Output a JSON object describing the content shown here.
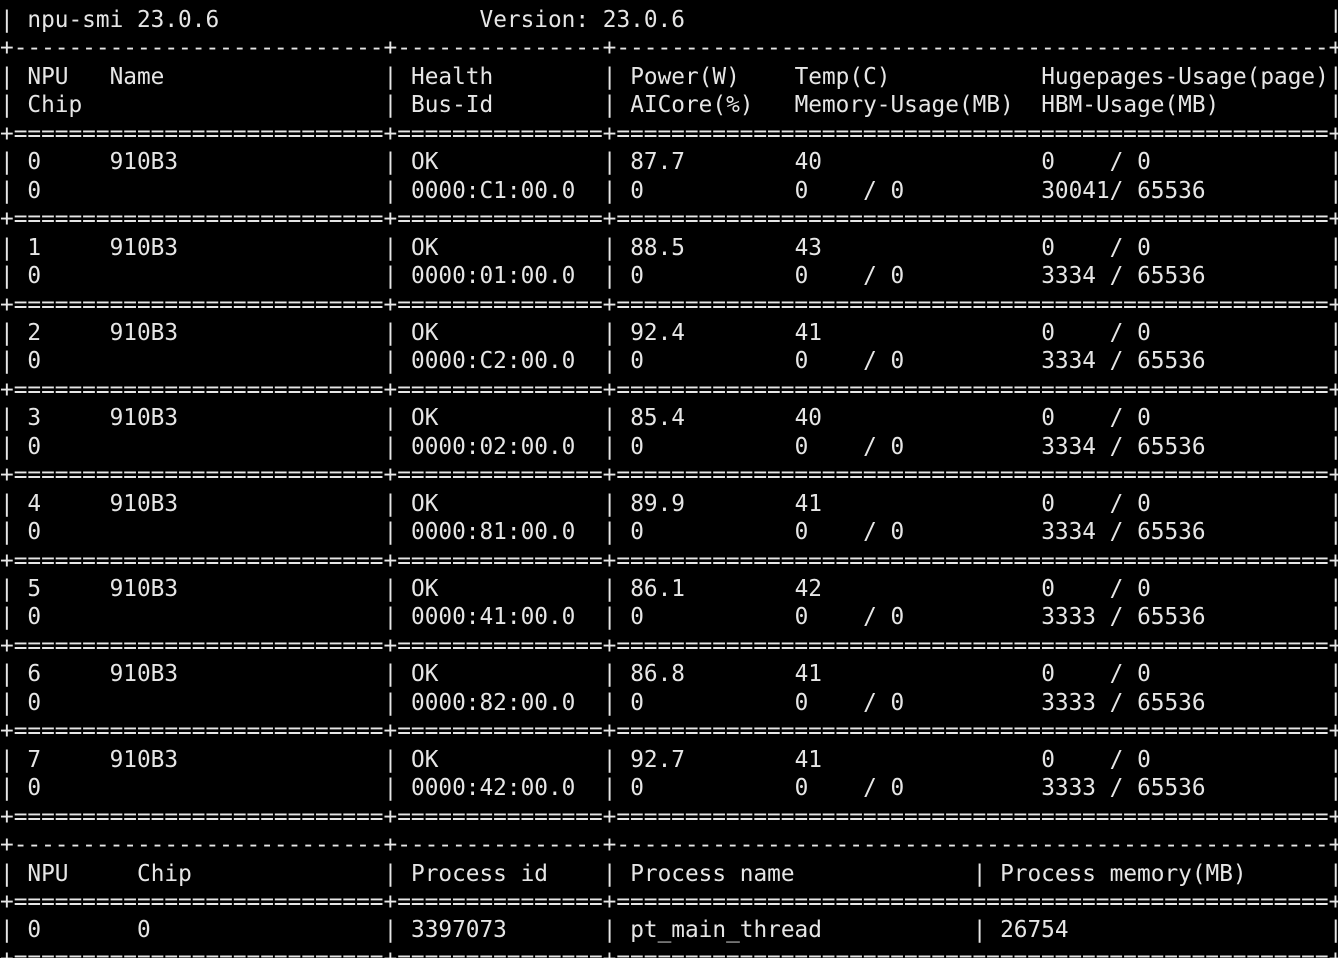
{
  "header": {
    "tool": "npu-smi 23.0.6",
    "version": "Version: 23.0.6"
  },
  "columns": {
    "npu": "NPU",
    "name": "Name",
    "health": "Health",
    "power": "Power(W)",
    "temp": "Temp(C)",
    "hugepages": "Hugepages-Usage(page)",
    "chip": "Chip",
    "bus_id": "Bus-Id",
    "aicore": "AICore(%)",
    "memory": "Memory-Usage(MB)",
    "hbm": "HBM-Usage(MB)"
  },
  "npus": [
    {
      "npu": "0",
      "name": "910B3",
      "health": "OK",
      "power": "87.7",
      "temp": "40",
      "hugepages": "0    / 0",
      "chip": "0",
      "bus_id": "0000:C1:00.0",
      "aicore": "0",
      "memory": "0    / 0",
      "hbm": "30041/ 65536"
    },
    {
      "npu": "1",
      "name": "910B3",
      "health": "OK",
      "power": "88.5",
      "temp": "43",
      "hugepages": "0    / 0",
      "chip": "0",
      "bus_id": "0000:01:00.0",
      "aicore": "0",
      "memory": "0    / 0",
      "hbm": "3334 / 65536"
    },
    {
      "npu": "2",
      "name": "910B3",
      "health": "OK",
      "power": "92.4",
      "temp": "41",
      "hugepages": "0    / 0",
      "chip": "0",
      "bus_id": "0000:C2:00.0",
      "aicore": "0",
      "memory": "0    / 0",
      "hbm": "3334 / 65536"
    },
    {
      "npu": "3",
      "name": "910B3",
      "health": "OK",
      "power": "85.4",
      "temp": "40",
      "hugepages": "0    / 0",
      "chip": "0",
      "bus_id": "0000:02:00.0",
      "aicore": "0",
      "memory": "0    / 0",
      "hbm": "3334 / 65536"
    },
    {
      "npu": "4",
      "name": "910B3",
      "health": "OK",
      "power": "89.9",
      "temp": "41",
      "hugepages": "0    / 0",
      "chip": "0",
      "bus_id": "0000:81:00.0",
      "aicore": "0",
      "memory": "0    / 0",
      "hbm": "3334 / 65536"
    },
    {
      "npu": "5",
      "name": "910B3",
      "health": "OK",
      "power": "86.1",
      "temp": "42",
      "hugepages": "0    / 0",
      "chip": "0",
      "bus_id": "0000:41:00.0",
      "aicore": "0",
      "memory": "0    / 0",
      "hbm": "3333 / 65536"
    },
    {
      "npu": "6",
      "name": "910B3",
      "health": "OK",
      "power": "86.8",
      "temp": "41",
      "hugepages": "0    / 0",
      "chip": "0",
      "bus_id": "0000:82:00.0",
      "aicore": "0",
      "memory": "0    / 0",
      "hbm": "3333 / 65536"
    },
    {
      "npu": "7",
      "name": "910B3",
      "health": "OK",
      "power": "92.7",
      "temp": "41",
      "hugepages": "0    / 0",
      "chip": "0",
      "bus_id": "0000:42:00.0",
      "aicore": "0",
      "memory": "0    / 0",
      "hbm": "3333 / 65536"
    }
  ],
  "process_columns": {
    "npu": "NPU",
    "chip": "Chip",
    "pid": "Process id",
    "pname": "Process name",
    "pmem": "Process memory(MB)"
  },
  "processes": [
    {
      "npu": "0",
      "chip": "0",
      "pid": "3397073",
      "pname": "pt_main_thread",
      "pmem": "26754"
    }
  ]
}
